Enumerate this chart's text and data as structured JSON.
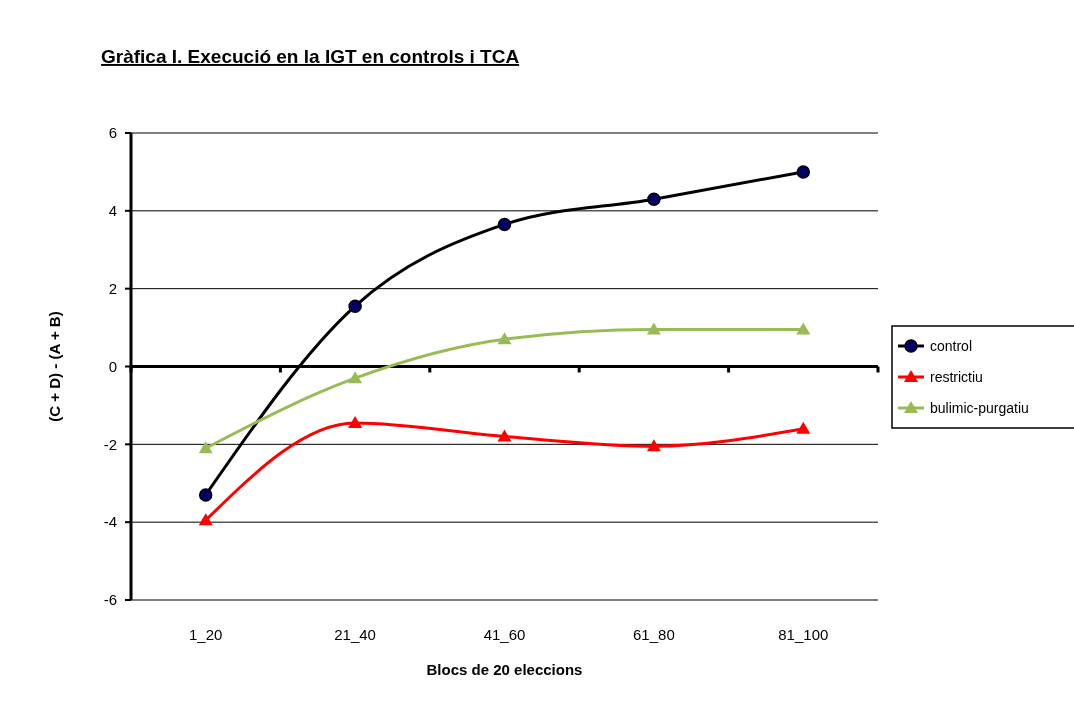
{
  "chart_data": {
    "type": "line",
    "title": "Gràfica I. Execució en la IGT en controls i TCA",
    "xlabel": "Blocs de 20 eleccions",
    "ylabel": "(C + D) - (A + B)",
    "categories": [
      "1_20",
      "21_40",
      "41_60",
      "61_80",
      "81_100"
    ],
    "series": [
      {
        "name": "control",
        "color": "#000000",
        "marker": "circle",
        "values": [
          -3.3,
          1.55,
          3.65,
          4.3,
          5.0
        ]
      },
      {
        "name": "restrictiu",
        "color": "#ff0000",
        "marker": "triangle",
        "values": [
          -3.95,
          -1.45,
          -1.8,
          -2.05,
          -1.6
        ]
      },
      {
        "name": "bulimic-purgatiu",
        "color": "#99bb55",
        "marker": "triangle",
        "values": [
          -2.1,
          -0.3,
          0.7,
          0.95,
          0.95
        ]
      }
    ],
    "ylim": [
      -6,
      6
    ],
    "yticks": [
      -6,
      -4,
      -2,
      0,
      2,
      4,
      6
    ],
    "grid": "y",
    "legend": "right"
  }
}
